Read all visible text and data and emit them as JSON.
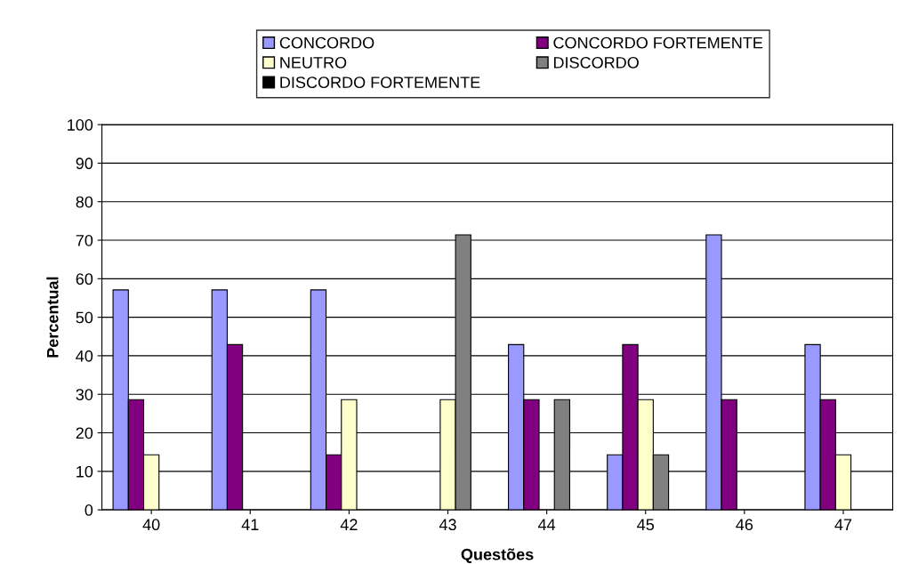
{
  "chart_data": {
    "type": "bar",
    "xlabel": "Questões",
    "ylabel": "Percentual",
    "categories": [
      "40",
      "41",
      "42",
      "43",
      "44",
      "45",
      "46",
      "47"
    ],
    "series": [
      {
        "name": "CONCORDO",
        "color": "#9999ff",
        "values": [
          57.1,
          57.1,
          57.1,
          null,
          42.9,
          14.3,
          71.4,
          42.9
        ]
      },
      {
        "name": "CONCORDO FORTEMENTE",
        "color": "#800080",
        "values": [
          28.6,
          42.9,
          14.3,
          null,
          28.6,
          42.9,
          28.6,
          28.6
        ]
      },
      {
        "name": "NEUTRO",
        "color": "#ffffcc",
        "values": [
          14.3,
          null,
          28.6,
          28.6,
          null,
          28.6,
          null,
          14.3
        ]
      },
      {
        "name": "DISCORDO",
        "color": "#808080",
        "values": [
          null,
          null,
          null,
          71.4,
          28.6,
          14.3,
          null,
          null
        ]
      },
      {
        "name": "DISCORDO FORTEMENTE",
        "color": "#000000",
        "values": [
          null,
          null,
          null,
          null,
          null,
          null,
          null,
          null
        ]
      }
    ],
    "ylim": [
      0,
      100
    ],
    "yticks": [
      0,
      10,
      20,
      30,
      40,
      50,
      60,
      70,
      80,
      90,
      100
    ],
    "grid": "y",
    "legend": "top"
  }
}
